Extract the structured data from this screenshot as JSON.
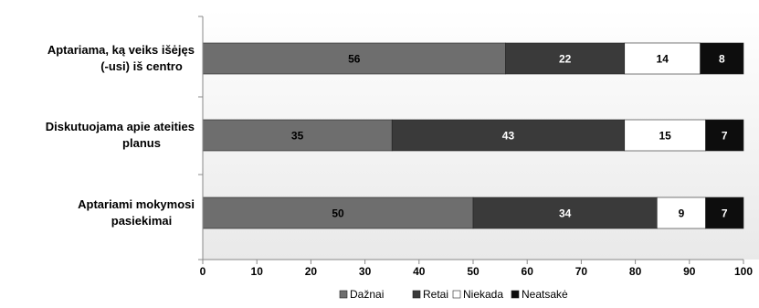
{
  "chart_data": {
    "type": "bar",
    "orientation": "horizontal",
    "stacked": true,
    "categories": [
      [
        "Aptariama, ką veiks išėjęs",
        "(-usi) iš centro"
      ],
      [
        "Diskutuojama apie ateities",
        "planus"
      ],
      [
        "Aptariami mokymosi",
        "pasiekimai"
      ]
    ],
    "series": [
      {
        "name": "Dažnai",
        "values": [
          56,
          35,
          50
        ],
        "color": "#6e6e6e",
        "label_color": "#000000"
      },
      {
        "name": "Retai",
        "values": [
          22,
          43,
          34
        ],
        "color": "#3a3a3a",
        "label_color": "#ffffff"
      },
      {
        "name": "Niekada",
        "values": [
          14,
          15,
          9
        ],
        "color": "#ffffff",
        "label_color": "#000000"
      },
      {
        "name": "Neatsakė",
        "values": [
          8,
          7,
          7
        ],
        "color": "#0d0d0d",
        "label_color": "#ffffff"
      }
    ],
    "xlim": [
      0,
      100
    ],
    "xticks": [
      0,
      10,
      20,
      30,
      40,
      50,
      60,
      70,
      80,
      90,
      100
    ],
    "grid": false,
    "legend_position": "bottom"
  }
}
